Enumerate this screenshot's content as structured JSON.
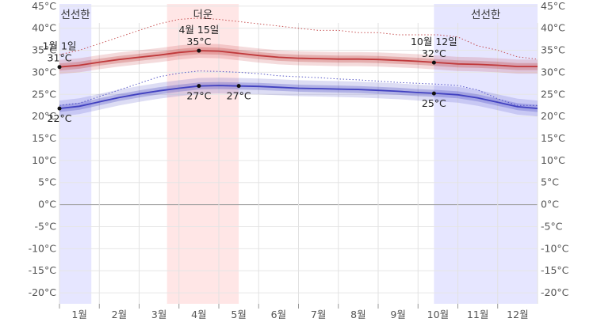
{
  "chart_data": {
    "type": "line",
    "title": "",
    "xlabel": "",
    "ylabel": "",
    "y_unit": "°C",
    "ylim": [
      -22.5,
      45.5
    ],
    "y_ticks": [
      45,
      40,
      35,
      30,
      25,
      20,
      15,
      10,
      5,
      0,
      -5,
      -10,
      -15,
      -20
    ],
    "y_tick_labels": [
      "45°C",
      "40°C",
      "35°C",
      "30°C",
      "25°C",
      "20°C",
      "15°C",
      "10°C",
      "5°C",
      "0°C",
      "-5°C",
      "-10°C",
      "-15°C",
      "-20°C"
    ],
    "grid": true,
    "months": [
      "1월",
      "2월",
      "3월",
      "4월",
      "5월",
      "6월",
      "7월",
      "8월",
      "9월",
      "10월",
      "11월",
      "12월"
    ],
    "seasons": [
      {
        "label": "선선한",
        "start_month": 0.0,
        "end_month": 0.8,
        "color": "#e6e6ff"
      },
      {
        "label": "더운",
        "start_month": 2.7,
        "end_month": 4.5,
        "color": "#ffe6e6"
      },
      {
        "label": "선선한",
        "start_month": 9.4,
        "end_month": 12.0,
        "color": "#e6e6ff"
      }
    ],
    "x_month_positions": [
      0.0,
      0.5,
      1.0,
      1.5,
      2.0,
      2.5,
      3.0,
      3.5,
      4.0,
      4.5,
      5.0,
      5.5,
      6.0,
      6.5,
      7.0,
      7.5,
      8.0,
      8.5,
      9.0,
      9.5,
      10.0,
      10.5,
      11.0,
      11.5,
      12.0
    ],
    "series": [
      {
        "role": "high_avg",
        "color": "#c0393b",
        "values": [
          31.2,
          31.6,
          32.3,
          32.9,
          33.4,
          33.9,
          34.5,
          34.9,
          34.8,
          34.3,
          33.8,
          33.4,
          33.2,
          33.1,
          33.0,
          33.0,
          32.9,
          32.7,
          32.5,
          32.2,
          31.9,
          31.8,
          31.6,
          31.3,
          31.3
        ]
      },
      {
        "role": "low_avg",
        "color": "#4040c0",
        "values": [
          21.8,
          22.3,
          23.3,
          24.3,
          25.1,
          25.8,
          26.4,
          26.9,
          27.0,
          26.9,
          26.8,
          26.6,
          26.4,
          26.3,
          26.2,
          26.1,
          25.9,
          25.7,
          25.4,
          25.2,
          24.9,
          24.2,
          23.2,
          22.2,
          21.8
        ]
      },
      {
        "role": "high_band_inner",
        "color": "#c0393b",
        "lower": [
          30.4,
          30.8,
          31.5,
          32.1,
          32.6,
          33.1,
          33.7,
          34.1,
          34.0,
          33.5,
          33.0,
          32.6,
          32.4,
          32.3,
          32.2,
          32.2,
          32.1,
          31.9,
          31.7,
          31.4,
          31.1,
          31.0,
          30.8,
          30.5,
          30.5
        ],
        "upper": [
          32.0,
          32.4,
          33.1,
          33.7,
          34.2,
          34.7,
          35.3,
          35.7,
          35.6,
          35.1,
          34.6,
          34.2,
          34.0,
          33.9,
          33.8,
          33.8,
          33.7,
          33.5,
          33.3,
          33.0,
          32.7,
          32.6,
          32.4,
          32.1,
          32.1
        ]
      },
      {
        "role": "high_band_outer",
        "color": "#c0393b",
        "lower": [
          29.6,
          30.0,
          30.7,
          31.3,
          31.8,
          32.3,
          32.9,
          33.3,
          33.2,
          32.7,
          32.2,
          31.8,
          31.6,
          31.5,
          31.4,
          31.4,
          31.3,
          31.1,
          30.9,
          30.6,
          30.3,
          30.2,
          30.0,
          29.7,
          29.7
        ],
        "upper": [
          32.8,
          33.2,
          33.9,
          34.5,
          35.0,
          35.5,
          36.1,
          36.5,
          36.4,
          35.9,
          35.4,
          35.0,
          34.8,
          34.7,
          34.6,
          34.6,
          34.5,
          34.3,
          34.1,
          33.8,
          33.5,
          33.4,
          33.2,
          32.9,
          32.9
        ]
      },
      {
        "role": "low_band_inner",
        "color": "#4040c0",
        "lower": [
          21.0,
          21.5,
          22.5,
          23.5,
          24.3,
          25.0,
          25.6,
          26.1,
          26.2,
          26.1,
          26.0,
          25.8,
          25.6,
          25.5,
          25.4,
          25.3,
          25.1,
          24.9,
          24.6,
          24.4,
          24.1,
          23.4,
          22.4,
          21.4,
          21.0
        ],
        "upper": [
          22.6,
          23.1,
          24.1,
          25.1,
          25.9,
          26.6,
          27.2,
          27.7,
          27.8,
          27.7,
          27.6,
          27.4,
          27.2,
          27.1,
          27.0,
          26.9,
          26.7,
          26.5,
          26.2,
          26.0,
          25.7,
          25.0,
          24.0,
          23.0,
          22.6
        ]
      },
      {
        "role": "low_band_outer",
        "color": "#4040c0",
        "lower": [
          20.0,
          20.5,
          21.5,
          22.5,
          23.3,
          24.0,
          24.6,
          25.1,
          25.2,
          25.1,
          25.0,
          24.8,
          24.6,
          24.5,
          24.4,
          24.3,
          24.1,
          23.9,
          23.6,
          23.4,
          23.1,
          22.4,
          21.4,
          20.4,
          20.0
        ],
        "upper": [
          23.6,
          24.1,
          25.1,
          26.1,
          26.9,
          27.6,
          28.2,
          28.7,
          28.8,
          28.7,
          28.6,
          28.4,
          28.2,
          28.1,
          28.0,
          27.9,
          27.7,
          27.5,
          27.2,
          27.0,
          26.7,
          26.0,
          25.0,
          24.0,
          23.6
        ]
      },
      {
        "role": "high_record_dotted",
        "color": "#c0393b",
        "values": [
          34.0,
          35.0,
          36.5,
          38.0,
          39.5,
          41.0,
          42.0,
          42.3,
          42.0,
          41.5,
          41.0,
          40.5,
          40.0,
          39.5,
          39.5,
          39.0,
          39.0,
          38.5,
          38.5,
          38.5,
          38.0,
          36.0,
          35.0,
          33.5,
          33.0
        ]
      },
      {
        "role": "low_record_dotted",
        "color": "#4040c0",
        "values": [
          22.5,
          23.0,
          24.5,
          26.0,
          27.5,
          29.0,
          29.8,
          30.3,
          30.2,
          30.0,
          29.7,
          29.2,
          29.0,
          28.8,
          28.5,
          28.3,
          28.0,
          27.7,
          27.5,
          27.3,
          27.0,
          26.0,
          24.0,
          22.5,
          22.5
        ]
      }
    ],
    "annotations": [
      {
        "month": 0.0,
        "value": 31.2,
        "date": "1월 1일",
        "temp": "31°C",
        "label_side": "above",
        "series": "high"
      },
      {
        "month": 0.0,
        "value": 21.8,
        "temp": "22°C",
        "label_side": "below",
        "series": "low"
      },
      {
        "month": 3.5,
        "value": 34.9,
        "date": "4월 15일",
        "temp": "35°C",
        "label_side": "above",
        "series": "high"
      },
      {
        "month": 3.5,
        "value": 26.9,
        "temp": "27°C",
        "label_side": "below",
        "series": "low"
      },
      {
        "month": 4.5,
        "value": 26.9,
        "temp": "27°C",
        "label_side": "below",
        "series": "low"
      },
      {
        "month": 9.4,
        "value": 32.2,
        "date": "10월 12일",
        "temp": "32°C",
        "label_side": "above",
        "series": "high"
      },
      {
        "month": 9.4,
        "value": 25.2,
        "temp": "25°C",
        "label_side": "below",
        "series": "low"
      }
    ]
  }
}
